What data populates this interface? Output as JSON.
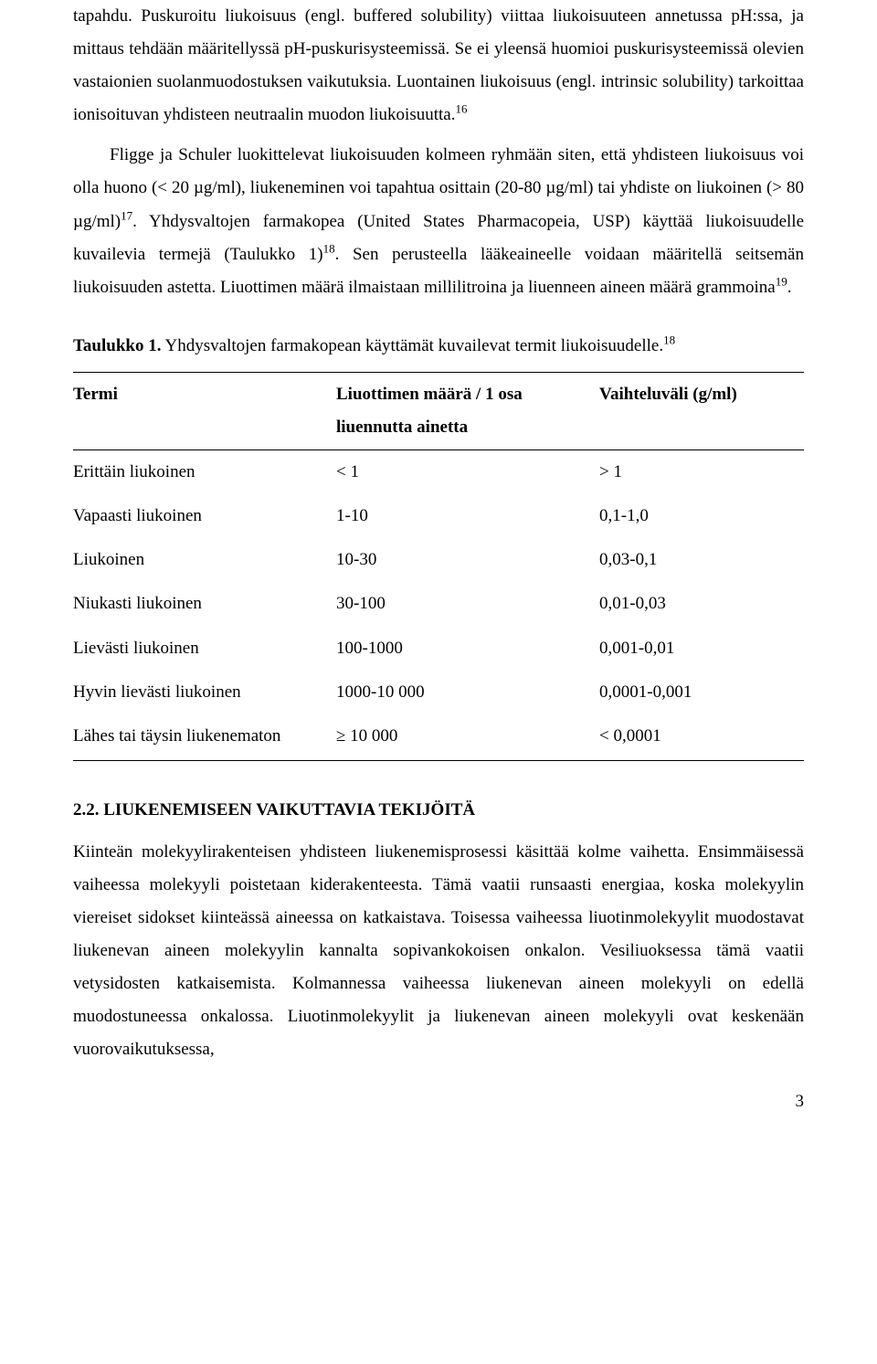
{
  "para1_a": "tapahdu. Puskuroitu liukoisuus (engl. buffered solubility) viittaa liukoisuuteen annetussa pH:ssa, ja mittaus tehdään määritellyssä pH-puskurisysteemissä. Se ei yleensä huomioi puskurisysteemissä olevien vastaionien suolanmuodostuksen vaikutuksia. Luontainen liukoisuus (engl. intrinsic solubility) tarkoittaa ionisoituvan yhdisteen neutraalin muodon liukoisuutta.",
  "para1_ref": "16",
  "para2_a": "Fligge ja Schuler luokittelevat liukoisuuden kolmeen ryhmään siten, että yhdisteen liukoisuus voi olla huono (< 20 µg/ml), liukeneminen voi tapahtua osittain (20-80 µg/ml) tai yhdiste on liukoinen (> 80 µg/ml)",
  "para2_ref1": "17",
  "para2_b": ". Yhdysvaltojen farmakopea (United States Pharmacopeia, USP) käyttää liukoisuudelle kuvailevia termejä (Taulukko 1)",
  "para2_ref2": "18",
  "para2_c": ". Sen perusteella lääkeaineelle voidaan määritellä seitsemän liukoisuuden astetta. Liuottimen määrä ilmaistaan millilitroina ja liuenneen aineen määrä grammoina",
  "para2_ref3": "19",
  "para2_d": ".",
  "caption_label": "Taulukko 1.",
  "caption_text": " Yhdysvaltojen farmakopean käyttämät kuvailevat termit liukoisuudelle.",
  "caption_ref": "18",
  "table": {
    "headers": [
      "Termi",
      "Liuottimen määrä / 1 osa liuennutta ainetta",
      "Vaihteluväli (g/ml)"
    ],
    "rows": [
      [
        "Erittäin liukoinen",
        "< 1",
        "> 1"
      ],
      [
        "Vapaasti liukoinen",
        "1-10",
        "0,1-1,0"
      ],
      [
        "Liukoinen",
        "10-30",
        "0,03-0,1"
      ],
      [
        "Niukasti liukoinen",
        "30-100",
        "0,01-0,03"
      ],
      [
        "Lievästi liukoinen",
        "100-1000",
        "0,001-0,01"
      ],
      [
        "Hyvin lievästi liukoinen",
        "1000-10 000",
        "0,0001-0,001"
      ],
      [
        "Lähes tai täysin liukenematon",
        "≥ 10 000",
        "< 0,0001"
      ]
    ]
  },
  "section_heading": "2.2. LIUKENEMISEEN VAIKUTTAVIA TEKIJÖITÄ",
  "para3": "Kiinteän molekyylirakenteisen yhdisteen liukenemisprosessi käsittää kolme vaihetta. Ensimmäisessä vaiheessa molekyyli poistetaan kiderakenteesta. Tämä vaatii runsaasti energiaa, koska molekyylin viereiset sidokset kiinteässä aineessa on katkaistava. Toisessa vaiheessa liuotinmolekyylit muodostavat liukenevan aineen molekyylin kannalta sopivankokoisen onkalon. Vesiliuoksessa tämä vaatii vetysidosten katkaisemista. Kolmannessa vaiheessa liukenevan aineen molekyyli on edellä muodostuneessa onkalossa. Liuotinmolekyylit ja liukenevan aineen molekyyli ovat keskenään vuorovaikutuksessa,",
  "page_number": "3"
}
